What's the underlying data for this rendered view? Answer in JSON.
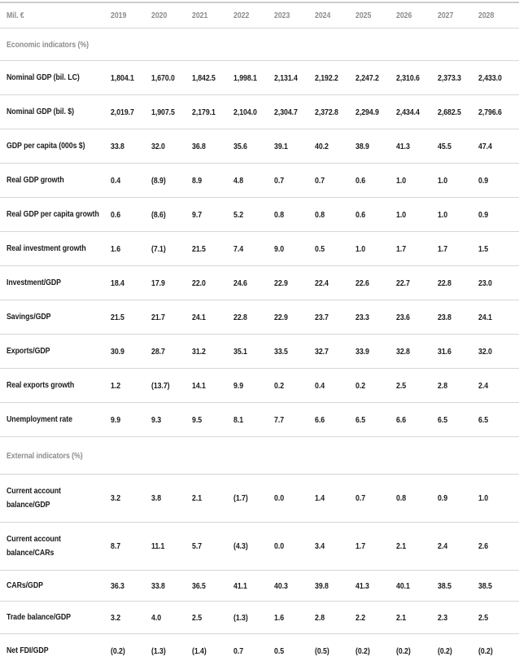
{
  "table": {
    "unit_label": "Mil. €",
    "years": [
      "2019",
      "2020",
      "2021",
      "2022",
      "2023",
      "2024",
      "2025",
      "2026",
      "2027",
      "2028"
    ],
    "sections": [
      {
        "title": "Economic indicators (%)",
        "rows": [
          {
            "label": "Nominal GDP (bil. LC)",
            "values": [
              "1,804.1",
              "1,670.0",
              "1,842.5",
              "1,998.1",
              "2,131.4",
              "2,192.2",
              "2,247.2",
              "2,310.6",
              "2,373.3",
              "2,433.0"
            ]
          },
          {
            "label": "Nominal GDP (bil. $)",
            "values": [
              "2,019.7",
              "1,907.5",
              "2,179.1",
              "2,104.0",
              "2,304.7",
              "2,372.8",
              "2,294.9",
              "2,434.4",
              "2,682.5",
              "2,796.6"
            ]
          },
          {
            "label": "GDP per capita (000s $)",
            "values": [
              "33.8",
              "32.0",
              "36.8",
              "35.6",
              "39.1",
              "40.2",
              "38.9",
              "41.3",
              "45.5",
              "47.4"
            ]
          },
          {
            "label": "Real GDP growth",
            "values": [
              "0.4",
              "(8.9)",
              "8.9",
              "4.8",
              "0.7",
              "0.7",
              "0.6",
              "1.0",
              "1.0",
              "0.9"
            ]
          },
          {
            "label": "Real GDP per capita growth",
            "values": [
              "0.6",
              "(8.6)",
              "9.7",
              "5.2",
              "0.8",
              "0.8",
              "0.6",
              "1.0",
              "1.0",
              "0.9"
            ]
          },
          {
            "label": "Real investment growth",
            "values": [
              "1.6",
              "(7.1)",
              "21.5",
              "7.4",
              "9.0",
              "0.5",
              "1.0",
              "1.7",
              "1.7",
              "1.5"
            ]
          },
          {
            "label": "Investment/GDP",
            "values": [
              "18.4",
              "17.9",
              "22.0",
              "24.6",
              "22.9",
              "22.4",
              "22.6",
              "22.7",
              "22.8",
              "23.0"
            ]
          },
          {
            "label": "Savings/GDP",
            "values": [
              "21.5",
              "21.7",
              "24.1",
              "22.8",
              "22.9",
              "23.7",
              "23.3",
              "23.6",
              "23.8",
              "24.1"
            ]
          },
          {
            "label": "Exports/GDP",
            "values": [
              "30.9",
              "28.7",
              "31.2",
              "35.1",
              "33.5",
              "32.7",
              "33.9",
              "32.8",
              "31.6",
              "32.0"
            ]
          },
          {
            "label": "Real exports growth",
            "values": [
              "1.2",
              "(13.7)",
              "14.1",
              "9.9",
              "0.2",
              "0.4",
              "0.2",
              "2.5",
              "2.8",
              "2.4"
            ]
          },
          {
            "label": "Unemployment rate",
            "values": [
              "9.9",
              "9.3",
              "9.5",
              "8.1",
              "7.7",
              "6.6",
              "6.5",
              "6.6",
              "6.5",
              "6.5"
            ]
          }
        ]
      },
      {
        "title": "External indicators (%)",
        "rows": [
          {
            "label": "Current account balance/GDP",
            "label_lines": [
              "Current account",
              "balance/GDP"
            ],
            "values": [
              "3.2",
              "3.8",
              "2.1",
              "(1.7)",
              "0.0",
              "1.4",
              "0.7",
              "0.8",
              "0.9",
              "1.0"
            ]
          },
          {
            "label": "Current account balance/CARs",
            "label_lines": [
              "Current account",
              "balance/CARs"
            ],
            "values": [
              "8.7",
              "11.1",
              "5.7",
              "(4.3)",
              "0.0",
              "3.4",
              "1.7",
              "2.1",
              "2.4",
              "2.6"
            ]
          },
          {
            "label": "CARs/GDP",
            "values": [
              "36.3",
              "33.8",
              "36.5",
              "41.1",
              "40.3",
              "39.8",
              "41.3",
              "40.1",
              "38.5",
              "38.5"
            ]
          },
          {
            "label": "Trade balance/GDP",
            "values": [
              "3.2",
              "4.0",
              "2.5",
              "(1.3)",
              "1.6",
              "2.8",
              "2.2",
              "2.1",
              "2.3",
              "2.5"
            ]
          },
          {
            "label": "Net FDI/GDP",
            "values": [
              "(0.2)",
              "(1.3)",
              "(1.4)",
              "0.7",
              "0.5",
              "(0.5)",
              "(0.2)",
              "(0.2)",
              "(0.2)",
              "(0.2)"
            ]
          }
        ]
      }
    ]
  },
  "colors": {
    "text_dark": "#1c1c1c",
    "text_gray": "#8d8d8d",
    "divider": "#d6d6d6",
    "top_border": "#cccccc",
    "background": "#ffffff"
  }
}
